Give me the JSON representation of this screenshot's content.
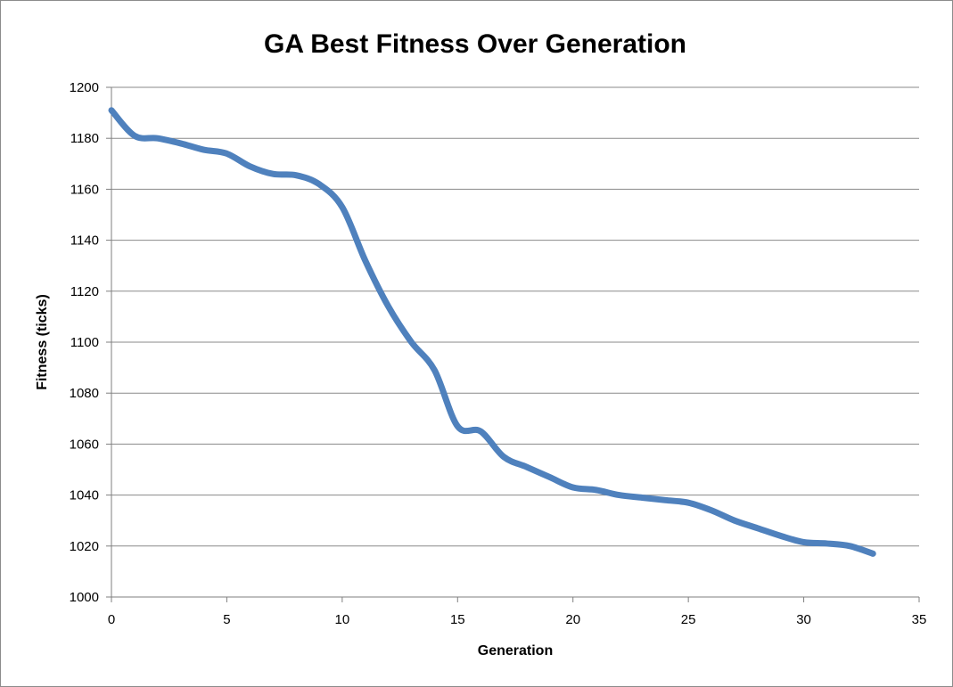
{
  "chart_data": {
    "type": "line",
    "title": "GA Best Fitness Over Generation",
    "xlabel": "Generation",
    "ylabel": "Fitness (ticks)",
    "xlim": [
      0,
      35
    ],
    "ylim": [
      1000,
      1200
    ],
    "xticks": [
      0,
      5,
      10,
      15,
      20,
      25,
      30,
      35
    ],
    "yticks": [
      1000,
      1020,
      1040,
      1060,
      1080,
      1100,
      1120,
      1140,
      1160,
      1180,
      1200
    ],
    "grid": true,
    "legend": "none",
    "line_color": "#4f81bd",
    "series": [
      {
        "x": [
          0,
          1,
          2,
          3,
          4,
          5,
          6,
          7,
          8,
          9,
          10,
          11,
          12,
          13,
          14,
          15,
          16,
          17,
          18,
          19,
          20,
          21,
          22,
          23,
          24,
          25,
          26,
          27,
          28,
          29,
          30,
          31,
          32,
          33
        ],
        "values": [
          1191,
          1181,
          1180,
          1178,
          1175.5,
          1174,
          1169,
          1166,
          1165.5,
          1162,
          1153,
          1132,
          1114,
          1100,
          1089,
          1067,
          1065,
          1055,
          1051,
          1047,
          1043,
          1042,
          1040,
          1039,
          1038,
          1037,
          1034,
          1030,
          1027,
          1024,
          1021.5,
          1021,
          1020,
          1017
        ]
      }
    ]
  }
}
